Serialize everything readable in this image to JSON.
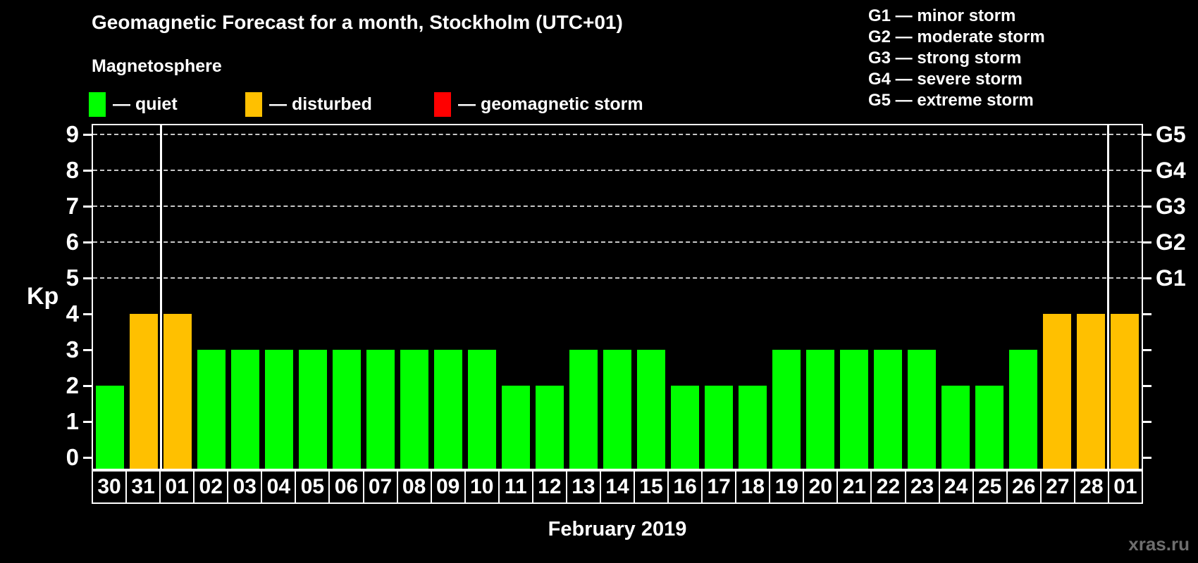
{
  "header": {
    "title": "Geomagnetic Forecast for a month, Stockholm (UTC+01)",
    "subtitle": "Magnetosphere"
  },
  "legend": {
    "items": [
      {
        "status": "quiet",
        "label": "— quiet",
        "color": "#00ff00"
      },
      {
        "status": "disturbed",
        "label": "— disturbed",
        "color": "#ffc000"
      },
      {
        "status": "storm",
        "label": "— geomagnetic storm",
        "color": "#ff0000"
      }
    ]
  },
  "g_legend": {
    "lines": [
      "G1 — minor storm",
      "G2 — moderate storm",
      "G3 — strong storm",
      "G4 — severe storm",
      "G5 — extreme storm"
    ]
  },
  "colors": {
    "background": "#000000",
    "axis": "#ffffff",
    "grid": "#c8c8c8",
    "quiet": "#00ff00",
    "disturbed": "#ffc000",
    "storm": "#ff0000",
    "watermark": "#6e6e6e"
  },
  "chart_data": {
    "type": "bar",
    "title": "Geomagnetic Forecast for a month, Stockholm (UTC+01)",
    "ylabel": "Kp",
    "xlabel": "February 2019",
    "ylim": [
      0,
      9
    ],
    "y_ticks": [
      0,
      1,
      2,
      3,
      4,
      5,
      6,
      7,
      8,
      9
    ],
    "gridlines_at": [
      5,
      6,
      7,
      8,
      9
    ],
    "grid_style": "horizontal dashed, only at G-storm levels 5-9",
    "legend_position": "top",
    "right_axis_labels": [
      {
        "label": "G1",
        "level": 5
      },
      {
        "label": "G2",
        "level": 6
      },
      {
        "label": "G3",
        "level": 7
      },
      {
        "label": "G4",
        "level": 8
      },
      {
        "label": "G5",
        "level": 9
      }
    ],
    "categories": [
      "30",
      "31",
      "01",
      "02",
      "03",
      "04",
      "05",
      "06",
      "07",
      "08",
      "09",
      "10",
      "11",
      "12",
      "13",
      "14",
      "15",
      "16",
      "17",
      "18",
      "19",
      "20",
      "21",
      "22",
      "23",
      "24",
      "25",
      "26",
      "27",
      "28",
      "01"
    ],
    "values": [
      2,
      4,
      4,
      3,
      3,
      3,
      3,
      3,
      3,
      3,
      3,
      3,
      2,
      2,
      3,
      3,
      3,
      2,
      2,
      2,
      3,
      3,
      3,
      3,
      3,
      2,
      2,
      3,
      4,
      4,
      4
    ],
    "statuses": [
      "quiet",
      "disturbed",
      "disturbed",
      "quiet",
      "quiet",
      "quiet",
      "quiet",
      "quiet",
      "quiet",
      "quiet",
      "quiet",
      "quiet",
      "quiet",
      "quiet",
      "quiet",
      "quiet",
      "quiet",
      "quiet",
      "quiet",
      "quiet",
      "quiet",
      "quiet",
      "quiet",
      "quiet",
      "quiet",
      "quiet",
      "quiet",
      "quiet",
      "disturbed",
      "disturbed",
      "disturbed"
    ],
    "month_separators_after_index": [
      1,
      29
    ]
  },
  "watermark": "xras.ru"
}
